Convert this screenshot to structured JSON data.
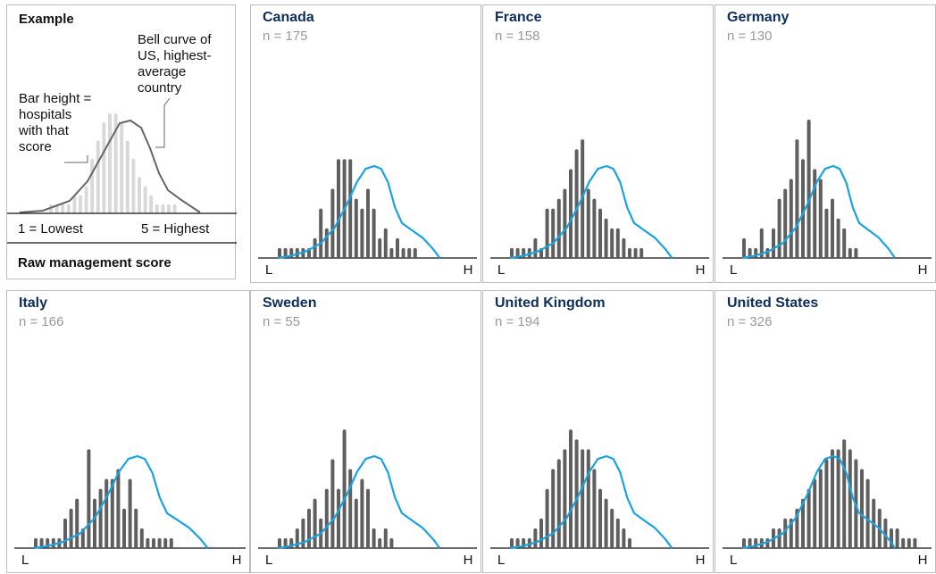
{
  "example": {
    "title": "Example",
    "bell_label": [
      "Bell curve of",
      "US, highest-",
      "average",
      "country"
    ],
    "bar_label": [
      "Bar height =",
      "hospitals",
      "with that",
      "score"
    ],
    "low_label": "1 = Lowest",
    "high_label": "5 = Highest",
    "axis_title": "Raw management score"
  },
  "axis_labels": {
    "low": "L",
    "high": "H"
  },
  "colors": {
    "bars": "#5f5f5f",
    "bars_example": "#d9d9d9",
    "us_curve": "#1aa3e0",
    "example_curve": "#666666",
    "title": "#0d2e5c",
    "n": "#9a9a9a"
  },
  "chart_data": [
    {
      "type": "bar",
      "country": "Canada",
      "n_label": "n = 175",
      "x_range": [
        1,
        5
      ],
      "values": [
        1,
        1,
        1,
        1,
        1,
        1,
        2,
        5,
        3,
        7,
        10,
        10,
        10,
        6,
        5,
        7,
        5,
        2,
        3,
        1,
        2,
        1,
        1,
        1
      ]
    },
    {
      "type": "bar",
      "country": "France",
      "n_label": "n = 158",
      "x_range": [
        1,
        5
      ],
      "values": [
        1,
        1,
        1,
        1,
        2,
        1,
        5,
        5,
        6,
        7,
        9,
        11,
        12,
        7,
        6,
        5,
        4,
        3,
        3,
        2,
        1,
        1,
        1
      ]
    },
    {
      "type": "bar",
      "country": "Germany",
      "n_label": "n = 130",
      "x_range": [
        1,
        5
      ],
      "values": [
        2,
        1,
        1,
        3,
        1,
        3,
        6,
        7,
        8,
        12,
        10,
        14,
        9,
        8,
        5,
        6,
        4,
        3,
        1,
        1
      ]
    },
    {
      "type": "bar",
      "country": "Italy",
      "n_label": "n = 166",
      "x_range": [
        1,
        5
      ],
      "values": [
        1,
        1,
        1,
        1,
        1,
        3,
        4,
        5,
        2,
        10,
        5,
        6,
        7,
        7,
        8,
        4,
        7,
        4,
        2,
        1,
        1,
        1,
        1,
        1
      ]
    },
    {
      "type": "bar",
      "country": "Sweden",
      "n_label": "n = 55",
      "x_range": [
        1,
        5
      ],
      "values": [
        1,
        1,
        1,
        2,
        3,
        4,
        5,
        3,
        6,
        9,
        6,
        12,
        8,
        5,
        7,
        6,
        2,
        1,
        2,
        1
      ]
    },
    {
      "type": "bar",
      "country": "United Kingdom",
      "n_label": "n = 194",
      "x_range": [
        1,
        5
      ],
      "values": [
        1,
        1,
        1,
        1,
        2,
        3,
        6,
        8,
        9,
        10,
        12,
        11,
        10,
        10,
        8,
        6,
        5,
        4,
        3,
        2,
        1
      ]
    },
    {
      "type": "bar",
      "country": "United States",
      "n_label": "n = 326",
      "x_range": [
        1,
        5
      ],
      "values": [
        1,
        1,
        1,
        1,
        1,
        2,
        2,
        3,
        3,
        4,
        5,
        6,
        7,
        8,
        9,
        10,
        10,
        11,
        10,
        9,
        8,
        7,
        5,
        4,
        3,
        2,
        2,
        1,
        1,
        1
      ]
    }
  ]
}
